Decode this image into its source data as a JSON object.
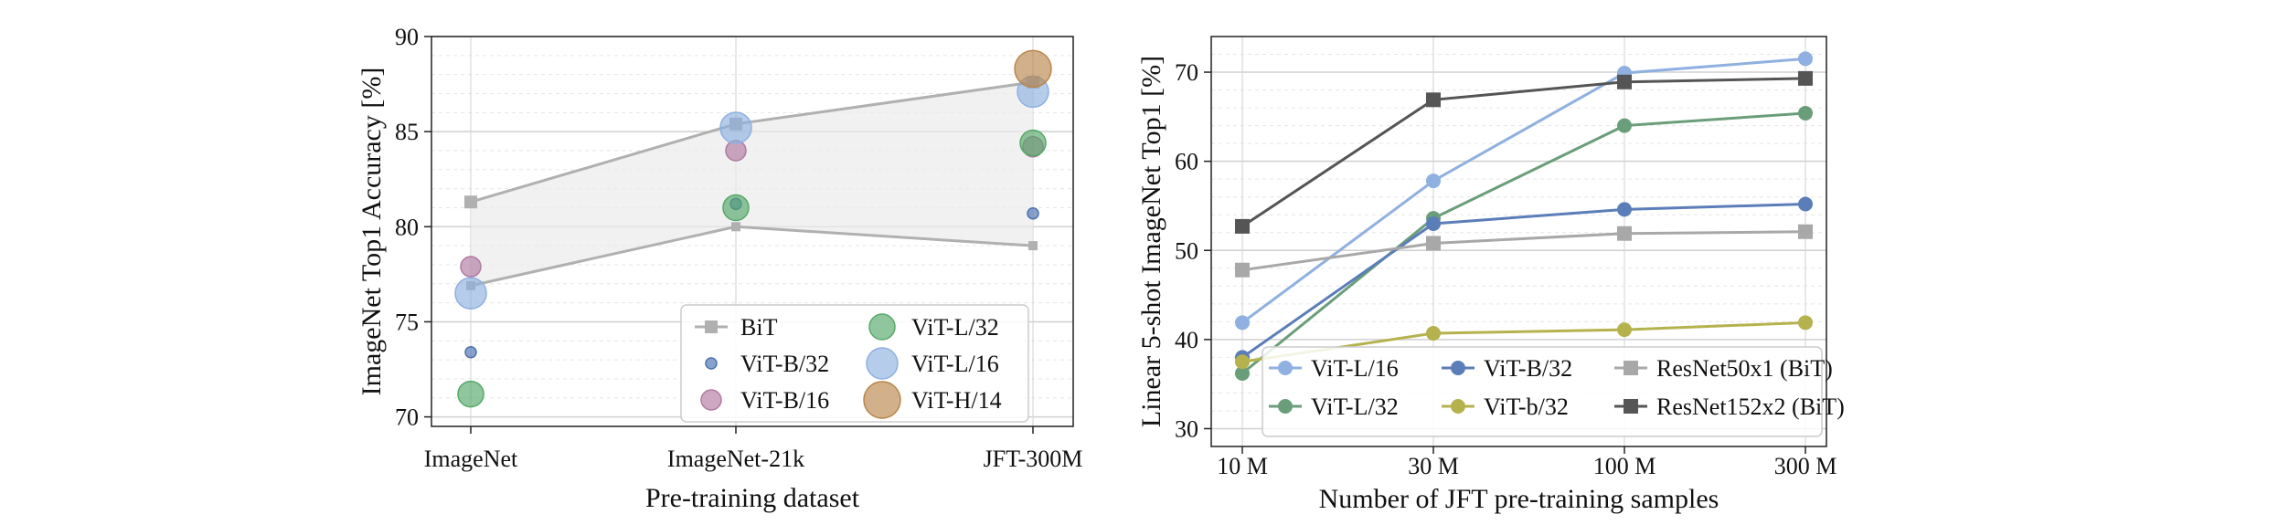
{
  "chart_data": [
    {
      "type": "scatter",
      "xlabel": "Pre-training dataset",
      "ylabel": "ImageNet Top1 Accuracy [%]",
      "categories": [
        "ImageNet",
        "ImageNet-21k",
        "JFT-300M"
      ],
      "ylim": [
        69.5,
        90
      ],
      "yticks": [
        70,
        75,
        80,
        85,
        90
      ],
      "grid": true,
      "bit_band": {
        "name": "BiT",
        "upper": [
          81.3,
          85.4,
          87.6
        ],
        "lower": [
          76.9,
          80.0,
          79.0
        ]
      },
      "series": [
        {
          "name": "ViT-B/32",
          "color": "#4c72b0",
          "size": 1,
          "values": [
            73.4,
            81.2,
            80.7
          ]
        },
        {
          "name": "ViT-B/16",
          "color": "#b07aa1",
          "size": 2,
          "values": [
            77.9,
            84.0,
            84.2
          ]
        },
        {
          "name": "ViT-L/32",
          "color": "#55a868",
          "size": 3,
          "values": [
            71.2,
            81.0,
            84.4
          ]
        },
        {
          "name": "ViT-L/16",
          "color": "#8fb0e0",
          "size": 4,
          "values": [
            76.5,
            85.2,
            87.1
          ]
        },
        {
          "name": "ViT-H/14",
          "color": "#b8864b",
          "size": 5,
          "values": [
            null,
            null,
            88.3
          ]
        }
      ],
      "legend": {
        "placement": "lower-right",
        "entries": [
          "BiT",
          "ViT-B/32",
          "ViT-B/16",
          "ViT-L/32",
          "ViT-L/16",
          "ViT-H/14"
        ]
      }
    },
    {
      "type": "line",
      "xlabel": "Number of JFT pre-training samples",
      "ylabel": "Linear 5-shot ImageNet Top1 [%]",
      "x_categories": [
        "10 M",
        "30 M",
        "100 M",
        "300 M"
      ],
      "ylim": [
        28,
        74
      ],
      "yticks": [
        30,
        40,
        50,
        60,
        70
      ],
      "grid": true,
      "series": [
        {
          "name": "ViT-L/16",
          "color": "#8fb0e0",
          "marker": "circle",
          "x": [
            0,
            1,
            2,
            3
          ],
          "values": [
            41.9,
            57.8,
            69.9,
            71.5
          ]
        },
        {
          "name": "ViT-L/32",
          "color": "#6a9e7a",
          "marker": "circle",
          "x": [
            0,
            1,
            2,
            3
          ],
          "values": [
            36.2,
            53.6,
            64.0,
            65.4
          ]
        },
        {
          "name": "ViT-B/32",
          "color": "#5b7db8",
          "marker": "circle",
          "x": [
            0,
            1,
            2,
            3
          ],
          "values": [
            38.0,
            53.0,
            54.6,
            55.2
          ]
        },
        {
          "name": "ViT-b/32",
          "color": "#b5b24e",
          "marker": "circle",
          "x": [
            0,
            1,
            2,
            3
          ],
          "values": [
            37.5,
            40.7,
            41.1,
            41.9
          ]
        },
        {
          "name": "ResNet50x1 (BiT)",
          "color": "#a8a8a8",
          "marker": "square",
          "x": [
            0,
            1,
            2,
            3
          ],
          "values": [
            47.8,
            50.8,
            51.9,
            52.1
          ]
        },
        {
          "name": "ResNet152x2 (BiT)",
          "color": "#555555",
          "marker": "square",
          "x": [
            0,
            1,
            2,
            3
          ],
          "values": [
            52.7,
            66.9,
            68.9,
            69.3
          ]
        }
      ],
      "legend": {
        "placement": "lower-right",
        "entries": [
          "ViT-L/16",
          "ViT-L/32",
          "ViT-B/32",
          "ViT-b/32",
          "ResNet50x1 (BiT)",
          "ResNet152x2 (BiT)"
        ]
      }
    }
  ]
}
